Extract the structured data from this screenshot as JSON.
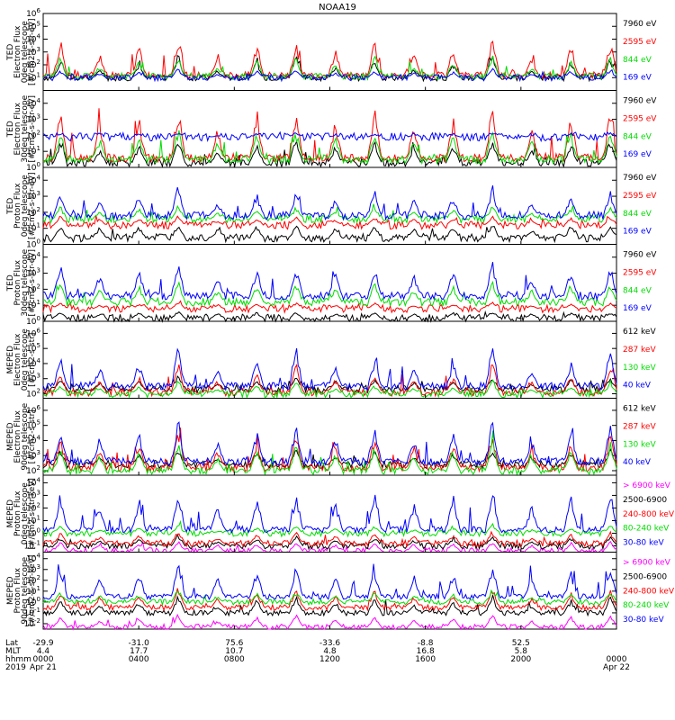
{
  "chart_data": {
    "title": "NOAA19",
    "x_axis": {
      "row_labels": [
        "Lat",
        "MLT",
        "hhmm",
        "2019"
      ],
      "ticks": [
        {
          "lat": "-29.9",
          "mlt": "4.4",
          "hhmm": "0000",
          "date": "Apr 21"
        },
        {
          "lat": "-31.0",
          "mlt": "17.7",
          "hhmm": "0400",
          "date": ""
        },
        {
          "lat": "75.6",
          "mlt": "10.7",
          "hhmm": "0800",
          "date": ""
        },
        {
          "lat": "-33.6",
          "mlt": "4.8",
          "hhmm": "1200",
          "date": ""
        },
        {
          "lat": "-8.8",
          "mlt": "16.8",
          "hhmm": "1600",
          "date": ""
        },
        {
          "lat": "52.5",
          "mlt": "5.8",
          "hhmm": "2000",
          "date": ""
        },
        {
          "lat": "",
          "mlt": "",
          "hhmm": "0000",
          "date": "Apr 22"
        }
      ]
    },
    "panels": [
      {
        "type": "line",
        "ylabel": [
          "TED",
          "Electron Flux",
          "0deg telescope",
          "[#/cm2-s-str-eV]"
        ],
        "yticks": [
          "10^1",
          "10^2",
          "10^3",
          "10^4",
          "10^5",
          "10^6"
        ],
        "ymin_exp": 0,
        "ymax_exp": 6,
        "log": true,
        "series": [
          {
            "name": "7960 eV",
            "color": "#000000",
            "baseline": 1.0,
            "spikes": [
              2.6,
              1.8,
              2.2,
              3.0,
              1.6,
              2.4,
              2.8,
              2.0
            ]
          },
          {
            "name": "2595 eV",
            "color": "#ff0000",
            "baseline": 1.2,
            "spikes": [
              4.2,
              3.0,
              3.6,
              4.5,
              2.6,
              3.8,
              4.1,
              3.3
            ]
          },
          {
            "name": "844 eV",
            "color": "#00dd00",
            "baseline": 1.1,
            "spikes": [
              2.8,
              2.0,
              2.4,
              2.9,
              1.9,
              2.5,
              2.7,
              2.2
            ]
          },
          {
            "name": "169 eV",
            "color": "#0000ff",
            "baseline": 1.0,
            "spikes": [
              1.6,
              1.4,
              1.5,
              1.8,
              1.3,
              1.6,
              1.7,
              1.4
            ]
          }
        ]
      },
      {
        "type": "line",
        "ylabel": [
          "TED",
          "Electron Flux",
          "30deg telescope",
          "[#/cm2-s-str-eV]"
        ],
        "yticks": [
          "10^0",
          "10^1",
          "10^2",
          "10^3",
          "10^4"
        ],
        "ymin_exp": 0,
        "ymax_exp": 4.8,
        "log": true,
        "series": [
          {
            "name": "7960 eV",
            "color": "#000000",
            "baseline": 0.3,
            "spikes": [
              1.8,
              1.2,
              1.5,
              2.0,
              1.1,
              1.6,
              1.9,
              1.4
            ]
          },
          {
            "name": "2595 eV",
            "color": "#ff0000",
            "baseline": 0.6,
            "spikes": [
              3.9,
              2.8,
              3.3,
              4.2,
              2.5,
              3.5,
              3.8,
              3.1
            ]
          },
          {
            "name": "844 eV",
            "color": "#00dd00",
            "baseline": 0.5,
            "spikes": [
              2.4,
              1.9,
              2.2,
              2.6,
              1.8,
              2.3,
              2.5,
              2.0
            ]
          },
          {
            "name": "169 eV",
            "color": "#0000ff",
            "baseline": 1.9,
            "spikes": [
              2.1,
              2.0,
              2.1,
              2.2,
              2.0,
              2.1,
              2.2,
              2.0
            ]
          }
        ]
      },
      {
        "type": "line",
        "ylabel": [
          "TED",
          "Proton Flux",
          "0deg telescope",
          "[#/cm2-s-str-eV]"
        ],
        "yticks": [
          "10^0",
          "10^1",
          "10^2",
          "10^3",
          "10^4"
        ],
        "ymin_exp": 0,
        "ymax_exp": 4.8,
        "log": true,
        "series": [
          {
            "name": "7960 eV",
            "color": "#000000",
            "baseline": 0.4,
            "spikes": [
              1.3,
              1.1,
              1.2,
              1.4,
              1.0,
              1.2,
              1.3,
              1.1
            ]
          },
          {
            "name": "2595 eV",
            "color": "#ff0000",
            "baseline": 1.2,
            "spikes": [
              1.8,
              1.6,
              1.7,
              1.9,
              1.5,
              1.7,
              1.8,
              1.6
            ]
          },
          {
            "name": "844 eV",
            "color": "#00dd00",
            "baseline": 1.6,
            "spikes": [
              2.4,
              2.1,
              2.3,
              2.5,
              2.0,
              2.3,
              2.4,
              2.2
            ]
          },
          {
            "name": "169 eV",
            "color": "#0000ff",
            "baseline": 1.8,
            "spikes": [
              3.6,
              2.9,
              3.2,
              3.8,
              2.7,
              3.3,
              3.5,
              3.0
            ]
          }
        ]
      },
      {
        "type": "line",
        "ylabel": [
          "TED",
          "Proton Flux",
          "30deg telescope",
          "[#/cm2-s-str-eV]"
        ],
        "yticks": [
          "10^0",
          "10^1",
          "10^2",
          "10^3",
          "10^4"
        ],
        "ymin_exp": 0,
        "ymax_exp": 4.8,
        "log": true,
        "series": [
          {
            "name": "7960 eV",
            "color": "#000000",
            "baseline": 0.2,
            "spikes": [
              0.6,
              0.5,
              0.6,
              0.7,
              0.5,
              0.6,
              0.6,
              0.5
            ]
          },
          {
            "name": "2595 eV",
            "color": "#ff0000",
            "baseline": 0.8,
            "spikes": [
              1.2,
              1.0,
              1.1,
              1.3,
              1.0,
              1.1,
              1.2,
              1.0
            ]
          },
          {
            "name": "844 eV",
            "color": "#00dd00",
            "baseline": 1.2,
            "spikes": [
              2.5,
              2.1,
              2.3,
              2.6,
              2.0,
              2.4,
              2.5,
              2.2
            ]
          },
          {
            "name": "169 eV",
            "color": "#0000ff",
            "baseline": 1.6,
            "spikes": [
              3.7,
              3.0,
              3.3,
              3.9,
              2.8,
              3.4,
              3.6,
              3.1
            ]
          }
        ]
      },
      {
        "type": "line",
        "ylabel": [
          "MEPED",
          "Electron Flux",
          "0deg telescope",
          "[#/cm2-s-str]"
        ],
        "yticks": [
          "10^2",
          "10^3",
          "10^4",
          "10^5",
          "10^6"
        ],
        "ymin_exp": 1.7,
        "ymax_exp": 6.8,
        "log": true,
        "series": [
          {
            "name": "612 keV",
            "color": "#000000",
            "baseline": 2.3,
            "spikes": [
              3.0,
              2.8,
              2.9,
              3.3,
              2.7,
              3.0,
              3.2,
              2.9
            ]
          },
          {
            "name": "287 keV",
            "color": "#ff0000",
            "baseline": 2.1,
            "spikes": [
              3.6,
              3.0,
              3.2,
              4.4,
              2.9,
              3.4,
              4.2,
              3.1
            ]
          },
          {
            "name": "130 keV",
            "color": "#00dd00",
            "baseline": 2.0,
            "spikes": [
              2.6,
              2.4,
              2.5,
              3.0,
              2.3,
              2.6,
              2.9,
              2.4
            ]
          },
          {
            "name": "40 keV",
            "color": "#0000ff",
            "baseline": 2.5,
            "spikes": [
              4.5,
              3.9,
              4.2,
              5.4,
              3.7,
              4.3,
              5.1,
              4.0
            ]
          }
        ]
      },
      {
        "type": "line",
        "ylabel": [
          "MEPED",
          "Electron Flux",
          "90deg telescope",
          "[#/cm2-s-str]"
        ],
        "yticks": [
          "10^2",
          "10^3",
          "10^4",
          "10^5",
          "10^6"
        ],
        "ymin_exp": 1.7,
        "ymax_exp": 6.8,
        "log": true,
        "series": [
          {
            "name": "612 keV",
            "color": "#000000",
            "baseline": 2.4,
            "spikes": [
              3.4,
              3.0,
              3.2,
              3.6,
              2.9,
              3.3,
              3.5,
              3.1
            ]
          },
          {
            "name": "287 keV",
            "color": "#ff0000",
            "baseline": 2.2,
            "spikes": [
              4.4,
              3.7,
              4.0,
              4.8,
              3.5,
              4.1,
              4.6,
              3.8
            ]
          },
          {
            "name": "130 keV",
            "color": "#00dd00",
            "baseline": 2.0,
            "spikes": [
              3.8,
              3.2,
              3.5,
              4.2,
              3.0,
              3.6,
              4.0,
              3.3
            ]
          },
          {
            "name": "40 keV",
            "color": "#0000ff",
            "baseline": 2.6,
            "spikes": [
              5.0,
              4.3,
              4.6,
              5.5,
              4.1,
              4.7,
              5.2,
              4.4
            ]
          }
        ]
      },
      {
        "type": "line",
        "ylabel": [
          "MEPED",
          "Proton Flux",
          "0deg telescope",
          "[#/cm2-s-str-keV]"
        ],
        "yticks": [
          "10^-1",
          "10^0",
          "10^1",
          "10^2",
          "10^3",
          "10^4"
        ],
        "ymin_exp": -1.5,
        "ymax_exp": 4.6,
        "log": true,
        "series": [
          {
            "name": "> 6900 keV",
            "color": "#ff00ff",
            "baseline": -1.4,
            "spikes": [
              -0.6,
              -0.8,
              -0.7,
              -0.5,
              -0.9,
              -0.7,
              -0.6,
              -0.8
            ]
          },
          {
            "name": "2500-6900",
            "color": "#000000",
            "baseline": -1.0,
            "spikes": [
              -0.2,
              -0.5,
              -0.4,
              0.0,
              -0.6,
              -0.3,
              -0.1,
              -0.5
            ]
          },
          {
            "name": "240-800 keV",
            "color": "#ff0000",
            "baseline": -0.8,
            "spikes": [
              0.1,
              -0.2,
              0.0,
              0.3,
              -0.3,
              0.0,
              0.2,
              -0.1
            ]
          },
          {
            "name": "80-240 keV",
            "color": "#00dd00",
            "baseline": 0.0,
            "spikes": [
              0.6,
              0.3,
              0.5,
              0.8,
              0.2,
              0.5,
              0.7,
              0.4
            ]
          },
          {
            "name": "30-80 keV",
            "color": "#0000ff",
            "baseline": 0.3,
            "spikes": [
              3.4,
              2.6,
              3.0,
              3.9,
              2.3,
              3.1,
              3.6,
              2.8
            ]
          }
        ]
      },
      {
        "type": "line",
        "ylabel": [
          "MEPED",
          "Proton Flux",
          "90deg telescope",
          "[#/cm2-s-str-keV]"
        ],
        "yticks": [
          "10^-2",
          "10^-1",
          "10^0",
          "10^1",
          "10^2",
          "10^3",
          "10^4"
        ],
        "ymin_exp": -2.5,
        "ymax_exp": 4.6,
        "log": true,
        "series": [
          {
            "name": "> 6900 keV",
            "color": "#ff00ff",
            "baseline": -2.3,
            "spikes": [
              -1.2,
              -1.6,
              -1.4,
              -1.0,
              -1.7,
              -1.3,
              -1.1,
              -1.5
            ]
          },
          {
            "name": "2500-6900",
            "color": "#000000",
            "baseline": -1.0,
            "spikes": [
              0.5,
              -0.2,
              0.2,
              0.8,
              -0.4,
              0.3,
              0.6,
              0.0
            ]
          },
          {
            "name": "240-800 keV",
            "color": "#ff0000",
            "baseline": -0.5,
            "spikes": [
              1.2,
              0.6,
              0.9,
              1.5,
              0.4,
              1.0,
              1.3,
              0.7
            ]
          },
          {
            "name": "80-240 keV",
            "color": "#00dd00",
            "baseline": 0.0,
            "spikes": [
              1.0,
              0.6,
              0.8,
              1.3,
              0.5,
              0.9,
              1.1,
              0.7
            ]
          },
          {
            "name": "30-80 keV",
            "color": "#0000ff",
            "baseline": 0.5,
            "spikes": [
              3.3,
              2.6,
              2.9,
              3.8,
              2.4,
              3.0,
              3.5,
              2.7
            ]
          }
        ]
      }
    ]
  }
}
